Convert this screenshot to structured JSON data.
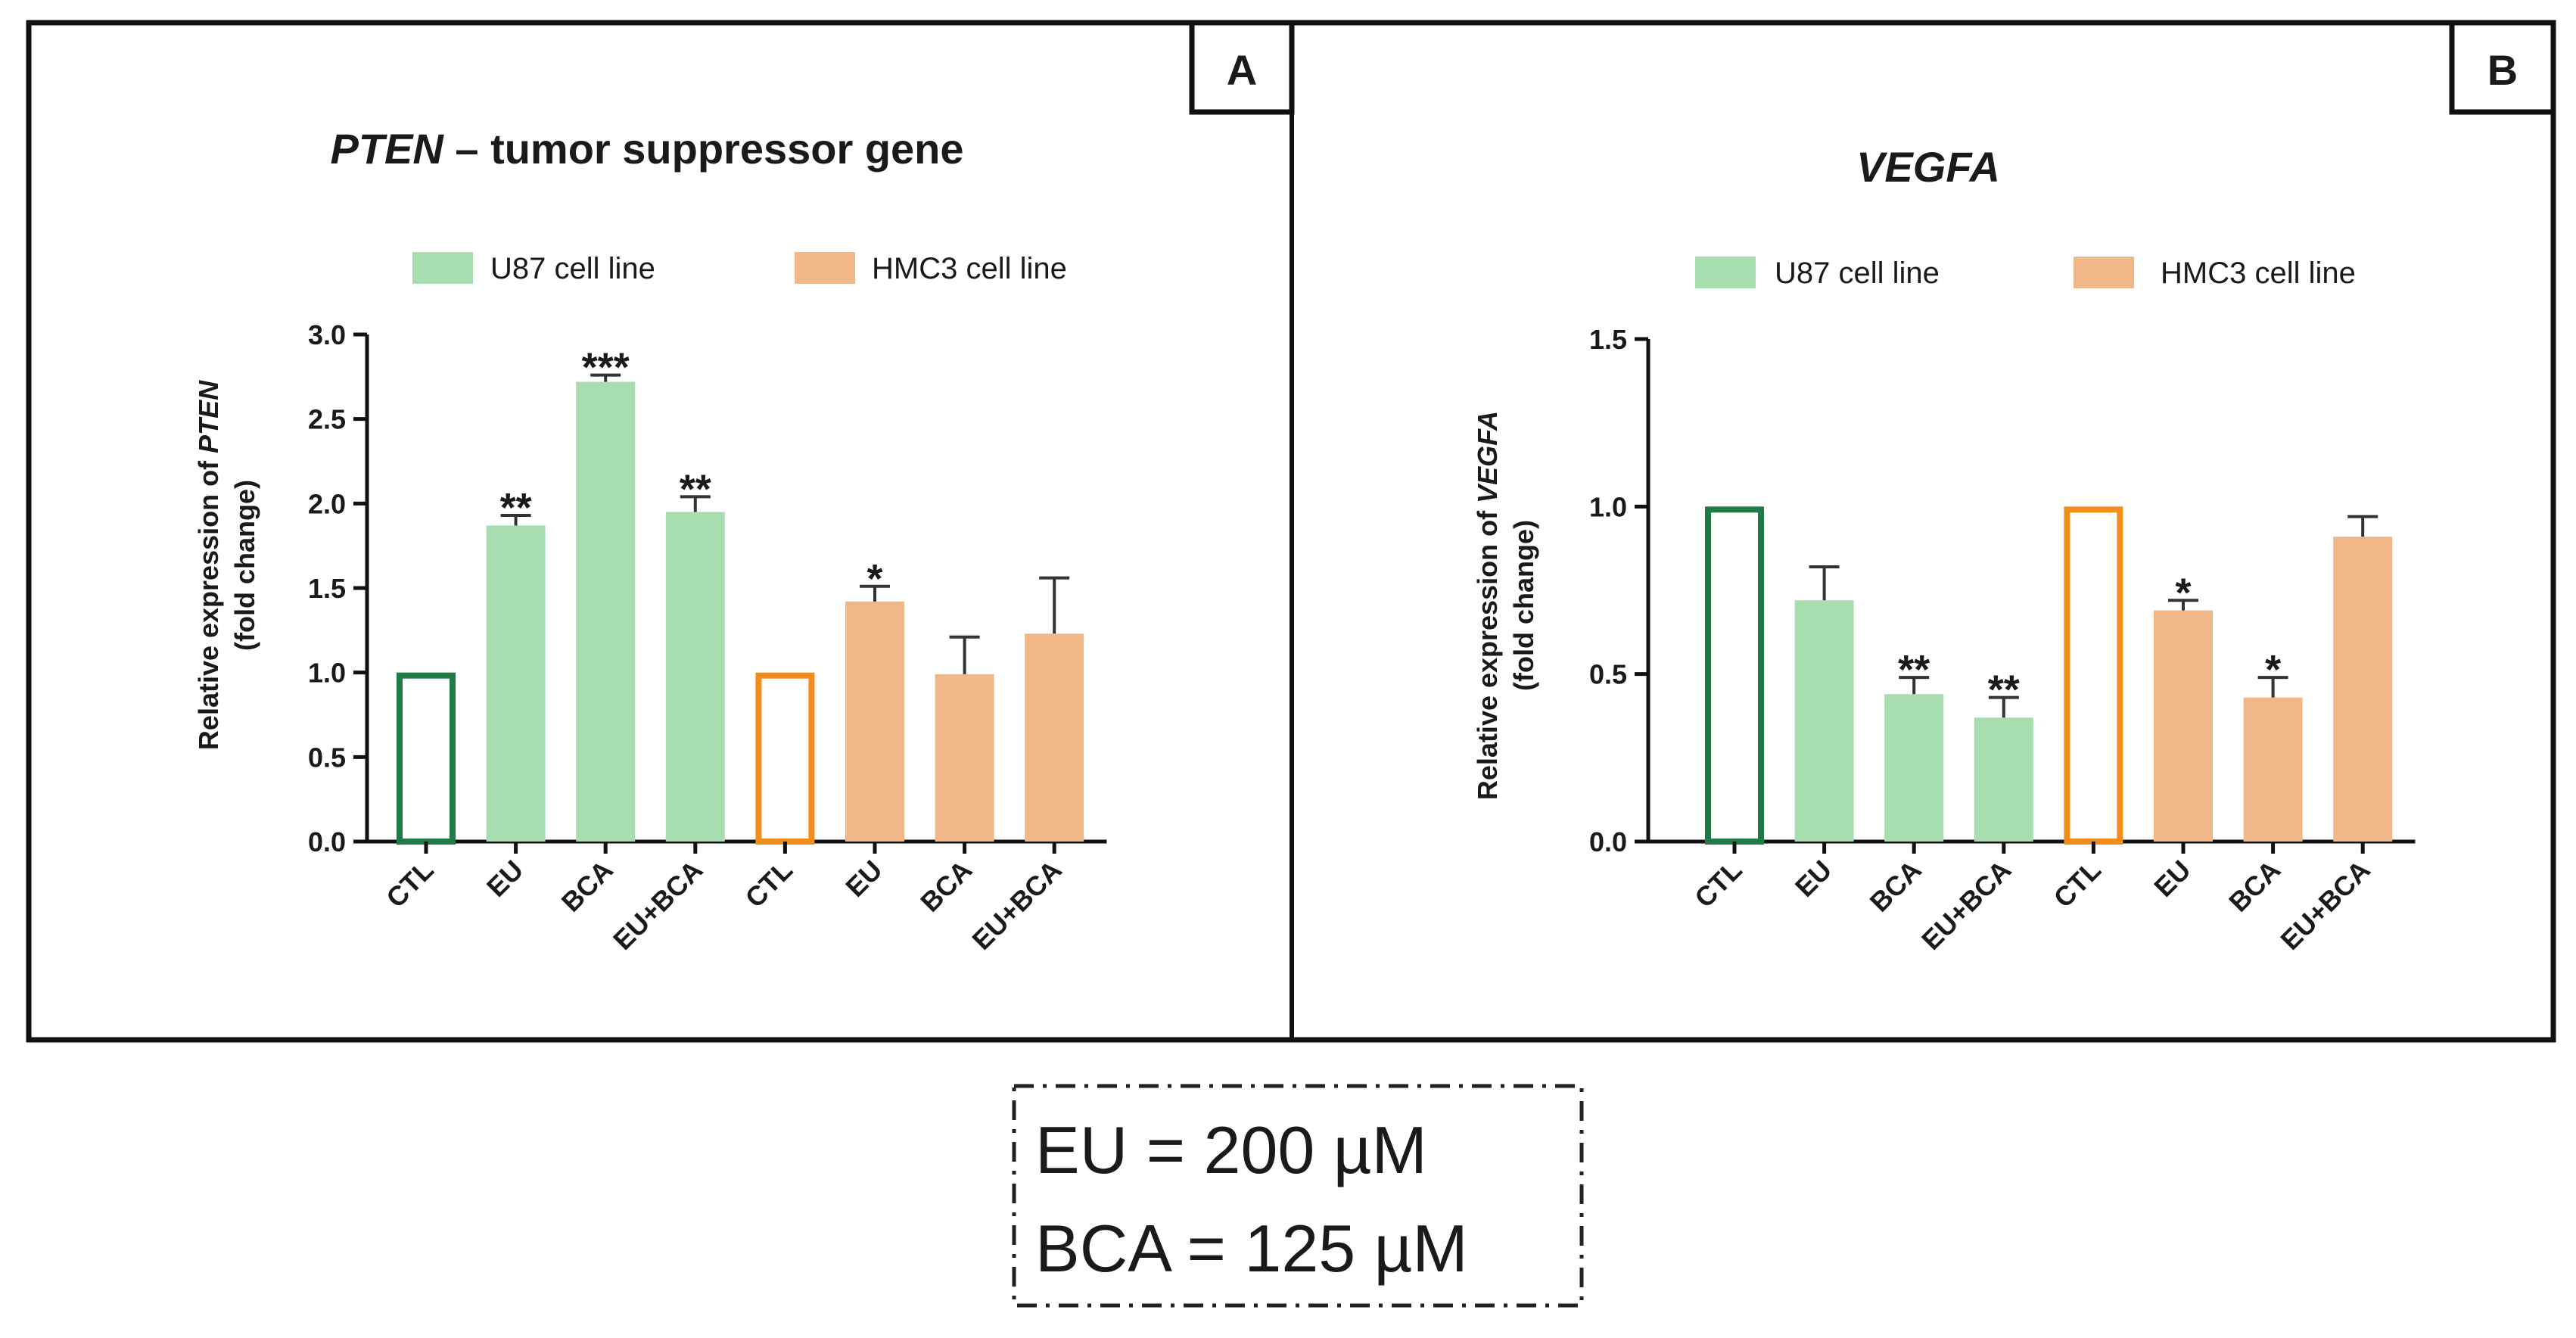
{
  "chart_data": [
    {
      "type": "bar",
      "panel_label": "A",
      "title_italic": "PTEN",
      "title_rest": " – tumor suppressor gene",
      "ylabel_line1_prefix": "Relative expression of ",
      "ylabel_line1_italic": "PTEN",
      "ylabel_line2": "(fold change)",
      "ylim": [
        0,
        3.0
      ],
      "yticks": [
        "0.0",
        "0.5",
        "1.0",
        "1.5",
        "2.0",
        "2.5",
        "3.0"
      ],
      "ytick_values": [
        0,
        0.5,
        1.0,
        1.5,
        2.0,
        2.5,
        3.0
      ],
      "legend": [
        {
          "name": "U87 cell line",
          "color": "#a8ddb0"
        },
        {
          "name": "HMC3 cell line",
          "color": "#f0b888"
        }
      ],
      "categories": [
        "CTL",
        "EU",
        "BCA",
        "EU+BCA",
        "CTL",
        "EU",
        "BCA",
        "EU+BCA"
      ],
      "values": [
        1.0,
        1.87,
        2.72,
        1.95,
        1.0,
        1.42,
        0.99,
        1.23
      ],
      "errors": [
        0,
        0.06,
        0.04,
        0.09,
        0,
        0.09,
        0.22,
        0.33
      ],
      "significance": [
        "",
        "**",
        "***",
        "**",
        "",
        "*",
        "",
        ""
      ],
      "series_of_bar": [
        "U87 cell line",
        "U87 cell line",
        "U87 cell line",
        "U87 cell line",
        "HMC3 cell line",
        "HMC3 cell line",
        "HMC3 cell line",
        "HMC3 cell line"
      ],
      "bar_style": [
        "outline-green",
        "fill-green",
        "fill-green",
        "fill-green",
        "outline-orange",
        "fill-orange",
        "fill-orange",
        "fill-orange"
      ]
    },
    {
      "type": "bar",
      "panel_label": "B",
      "title_italic": "VEGFA",
      "title_rest": "",
      "ylabel_line1_prefix": "Relative expression of ",
      "ylabel_line1_italic": "VEGFA",
      "ylabel_line2": "(fold change)",
      "ylim": [
        0,
        1.5
      ],
      "yticks": [
        "0.0",
        "0.5",
        "1.0",
        "1.5"
      ],
      "ytick_values": [
        0,
        0.5,
        1.0,
        1.5
      ],
      "legend": [
        {
          "name": "U87 cell line",
          "color": "#a8ddb0"
        },
        {
          "name": "HMC3 cell line",
          "color": "#f0b888"
        }
      ],
      "categories": [
        "CTL",
        "EU",
        "BCA",
        "EU+BCA",
        "CTL",
        "EU",
        "BCA",
        "EU+BCA"
      ],
      "values": [
        1.0,
        0.72,
        0.44,
        0.37,
        1.0,
        0.69,
        0.43,
        0.91
      ],
      "errors": [
        0,
        0.1,
        0.05,
        0.06,
        0,
        0.03,
        0.06,
        0.06
      ],
      "significance": [
        "",
        "",
        "**",
        "**",
        "",
        "*",
        "*",
        ""
      ],
      "series_of_bar": [
        "U87 cell line",
        "U87 cell line",
        "U87 cell line",
        "U87 cell line",
        "HMC3 cell line",
        "HMC3 cell line",
        "HMC3 cell line",
        "HMC3 cell line"
      ],
      "bar_style": [
        "outline-green",
        "fill-green",
        "fill-green",
        "fill-green",
        "outline-orange",
        "fill-orange",
        "fill-orange",
        "fill-orange"
      ]
    }
  ],
  "colors": {
    "u87_fill": "#a8ddb0",
    "u87_outline": "#1f7a45",
    "hmc3_fill": "#f0b888",
    "hmc3_outline": "#f28c1a",
    "frame": "#111111"
  },
  "note": {
    "line1": "EU = 200 µM",
    "line2": "BCA = 125 µM"
  }
}
